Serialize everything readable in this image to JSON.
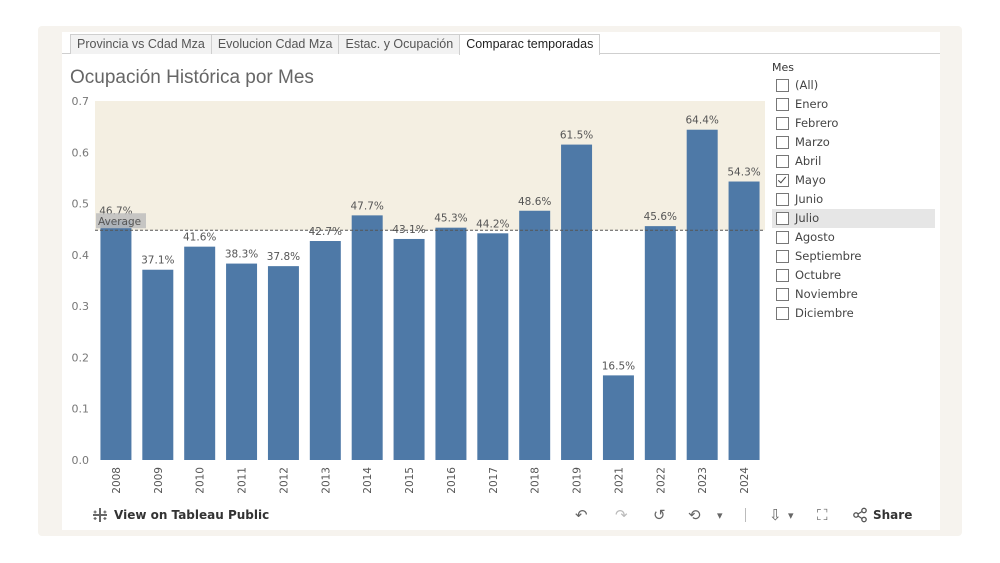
{
  "tabs": [
    "Provincia vs Cdad Mza",
    "Evolucion Cdad Mza",
    "Estac. y Ocupación",
    "Comparac temporadas"
  ],
  "active_tab": 3,
  "chart_data": {
    "type": "bar",
    "title": "Ocupación Histórica por Mes",
    "categories": [
      "2008",
      "2009",
      "2010",
      "2011",
      "2012",
      "2013",
      "2014",
      "2015",
      "2016",
      "2017",
      "2018",
      "2019",
      "2021",
      "2022",
      "2023",
      "2024"
    ],
    "values": [
      0.467,
      0.371,
      0.416,
      0.383,
      0.378,
      0.427,
      0.477,
      0.431,
      0.453,
      0.442,
      0.486,
      0.615,
      0.165,
      0.456,
      0.644,
      0.543
    ],
    "labels": [
      "46.7%",
      "37.1%",
      "41.6%",
      "38.3%",
      "37.8%",
      "42.7%",
      "47.7%",
      "43.1%",
      "45.3%",
      "44.2%",
      "48.6%",
      "61.5%",
      "16.5%",
      "45.6%",
      "64.4%",
      "54.3%"
    ],
    "ylim": [
      0,
      0.7
    ],
    "yticks": [
      "0.0",
      "0.1",
      "0.2",
      "0.3",
      "0.4",
      "0.5",
      "0.6",
      "0.7"
    ],
    "ytick_values": [
      0,
      0.1,
      0.2,
      0.3,
      0.4,
      0.5,
      0.6,
      0.7
    ],
    "average": 0.448,
    "average_label": "Average",
    "bar_color": "#4e79a7",
    "band_color": "#f4efe2"
  },
  "filter": {
    "title": "Mes",
    "items": [
      {
        "label": "(All)",
        "checked": false
      },
      {
        "label": "Enero",
        "checked": false
      },
      {
        "label": "Febrero",
        "checked": false
      },
      {
        "label": "Marzo",
        "checked": false
      },
      {
        "label": "Abril",
        "checked": false
      },
      {
        "label": "Mayo",
        "checked": true
      },
      {
        "label": "Junio",
        "checked": false
      },
      {
        "label": "Julio",
        "checked": false
      },
      {
        "label": "Agosto",
        "checked": false
      },
      {
        "label": "Septiembre",
        "checked": false
      },
      {
        "label": "Octubre",
        "checked": false
      },
      {
        "label": "Noviembre",
        "checked": false
      },
      {
        "label": "Diciembre",
        "checked": false
      }
    ],
    "hover_index": 7
  },
  "toolbar": {
    "view_label": "View on Tableau Public",
    "share_label": "Share",
    "undo_icon": "↶",
    "redo_icon": "↷",
    "revert_icon": "↺",
    "refresh_icon": "⟲",
    "caret": "▾",
    "download_icon": "⇩",
    "fullscreen_icon": "⛶",
    "share_icon": "⟨"
  }
}
